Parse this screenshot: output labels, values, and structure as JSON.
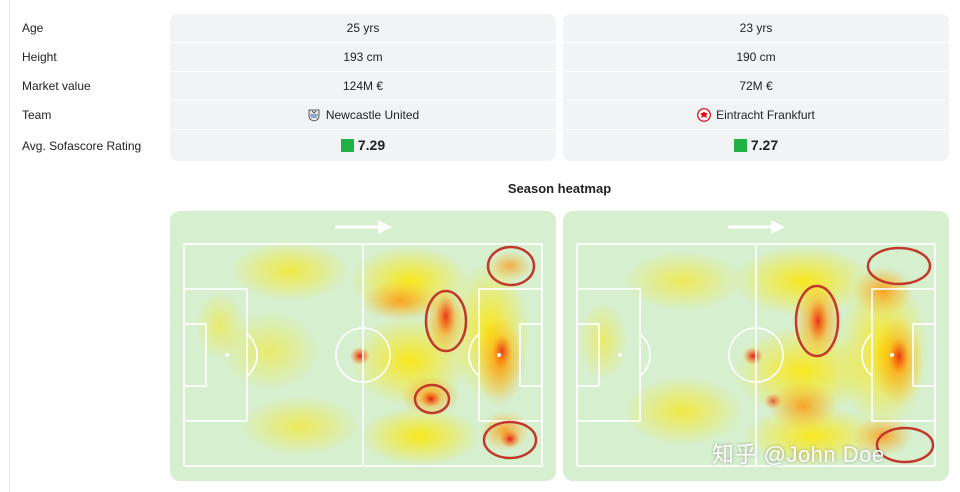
{
  "comparison": {
    "rows": [
      {
        "label": "Age",
        "player_a": "25 yrs",
        "player_b": "23 yrs"
      },
      {
        "label": "Height",
        "player_a": "193 cm",
        "player_b": "190 cm"
      },
      {
        "label": "Market value",
        "player_a": "124M €",
        "player_b": "72M €"
      },
      {
        "label": "Team",
        "player_a": "Newcastle United",
        "player_b": "Eintracht Frankfurt"
      },
      {
        "label": "Avg. Sofascore Rating",
        "player_a": "7.29",
        "player_b": "7.27"
      }
    ],
    "team_icons": {
      "player_a": "newcastle-crest-icon",
      "player_b": "frankfurt-eagle-icon"
    },
    "rating_color": "#1fb141"
  },
  "heatmap": {
    "title": "Season heatmap",
    "attack_direction_icon": "arrow-right-icon",
    "pitch_color": "#d6efcf",
    "line_color": "#ffffff",
    "highlight_color": "#c0392b"
  },
  "watermark": "知乎 @John Doe"
}
